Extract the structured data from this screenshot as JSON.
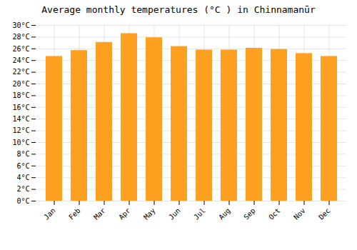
{
  "chart_data": {
    "type": "bar",
    "title": "Average monthly temperatures (°C ) in Chinnamanūr",
    "categories": [
      "Jan",
      "Feb",
      "Mar",
      "Apr",
      "May",
      "Jun",
      "Jul",
      "Aug",
      "Sep",
      "Oct",
      "Nov",
      "Dec"
    ],
    "values": [
      24.7,
      25.7,
      27.1,
      28.6,
      27.9,
      26.4,
      25.8,
      25.8,
      26.1,
      25.9,
      25.2,
      24.7
    ],
    "color": "#FFA020",
    "ylim": [
      0,
      30
    ],
    "yticks": [
      {
        "value": 0,
        "label": "0°C"
      },
      {
        "value": 2,
        "label": "2°C"
      },
      {
        "value": 4,
        "label": "4°C"
      },
      {
        "value": 6,
        "label": "6°C"
      },
      {
        "value": 8,
        "label": "8°C"
      },
      {
        "value": 10,
        "label": "10°C"
      },
      {
        "value": 12,
        "label": "12°C"
      },
      {
        "value": 14,
        "label": "14°C"
      },
      {
        "value": 16,
        "label": "16°C"
      },
      {
        "value": 18,
        "label": "18°C"
      },
      {
        "value": 20,
        "label": "20°C"
      },
      {
        "value": 22,
        "label": "22°C"
      },
      {
        "value": 24,
        "label": "24°C"
      },
      {
        "value": 26,
        "label": "26°C"
      },
      {
        "value": 28,
        "label": "28°C"
      },
      {
        "value": 30,
        "label": "30°C"
      }
    ],
    "grid": true
  }
}
